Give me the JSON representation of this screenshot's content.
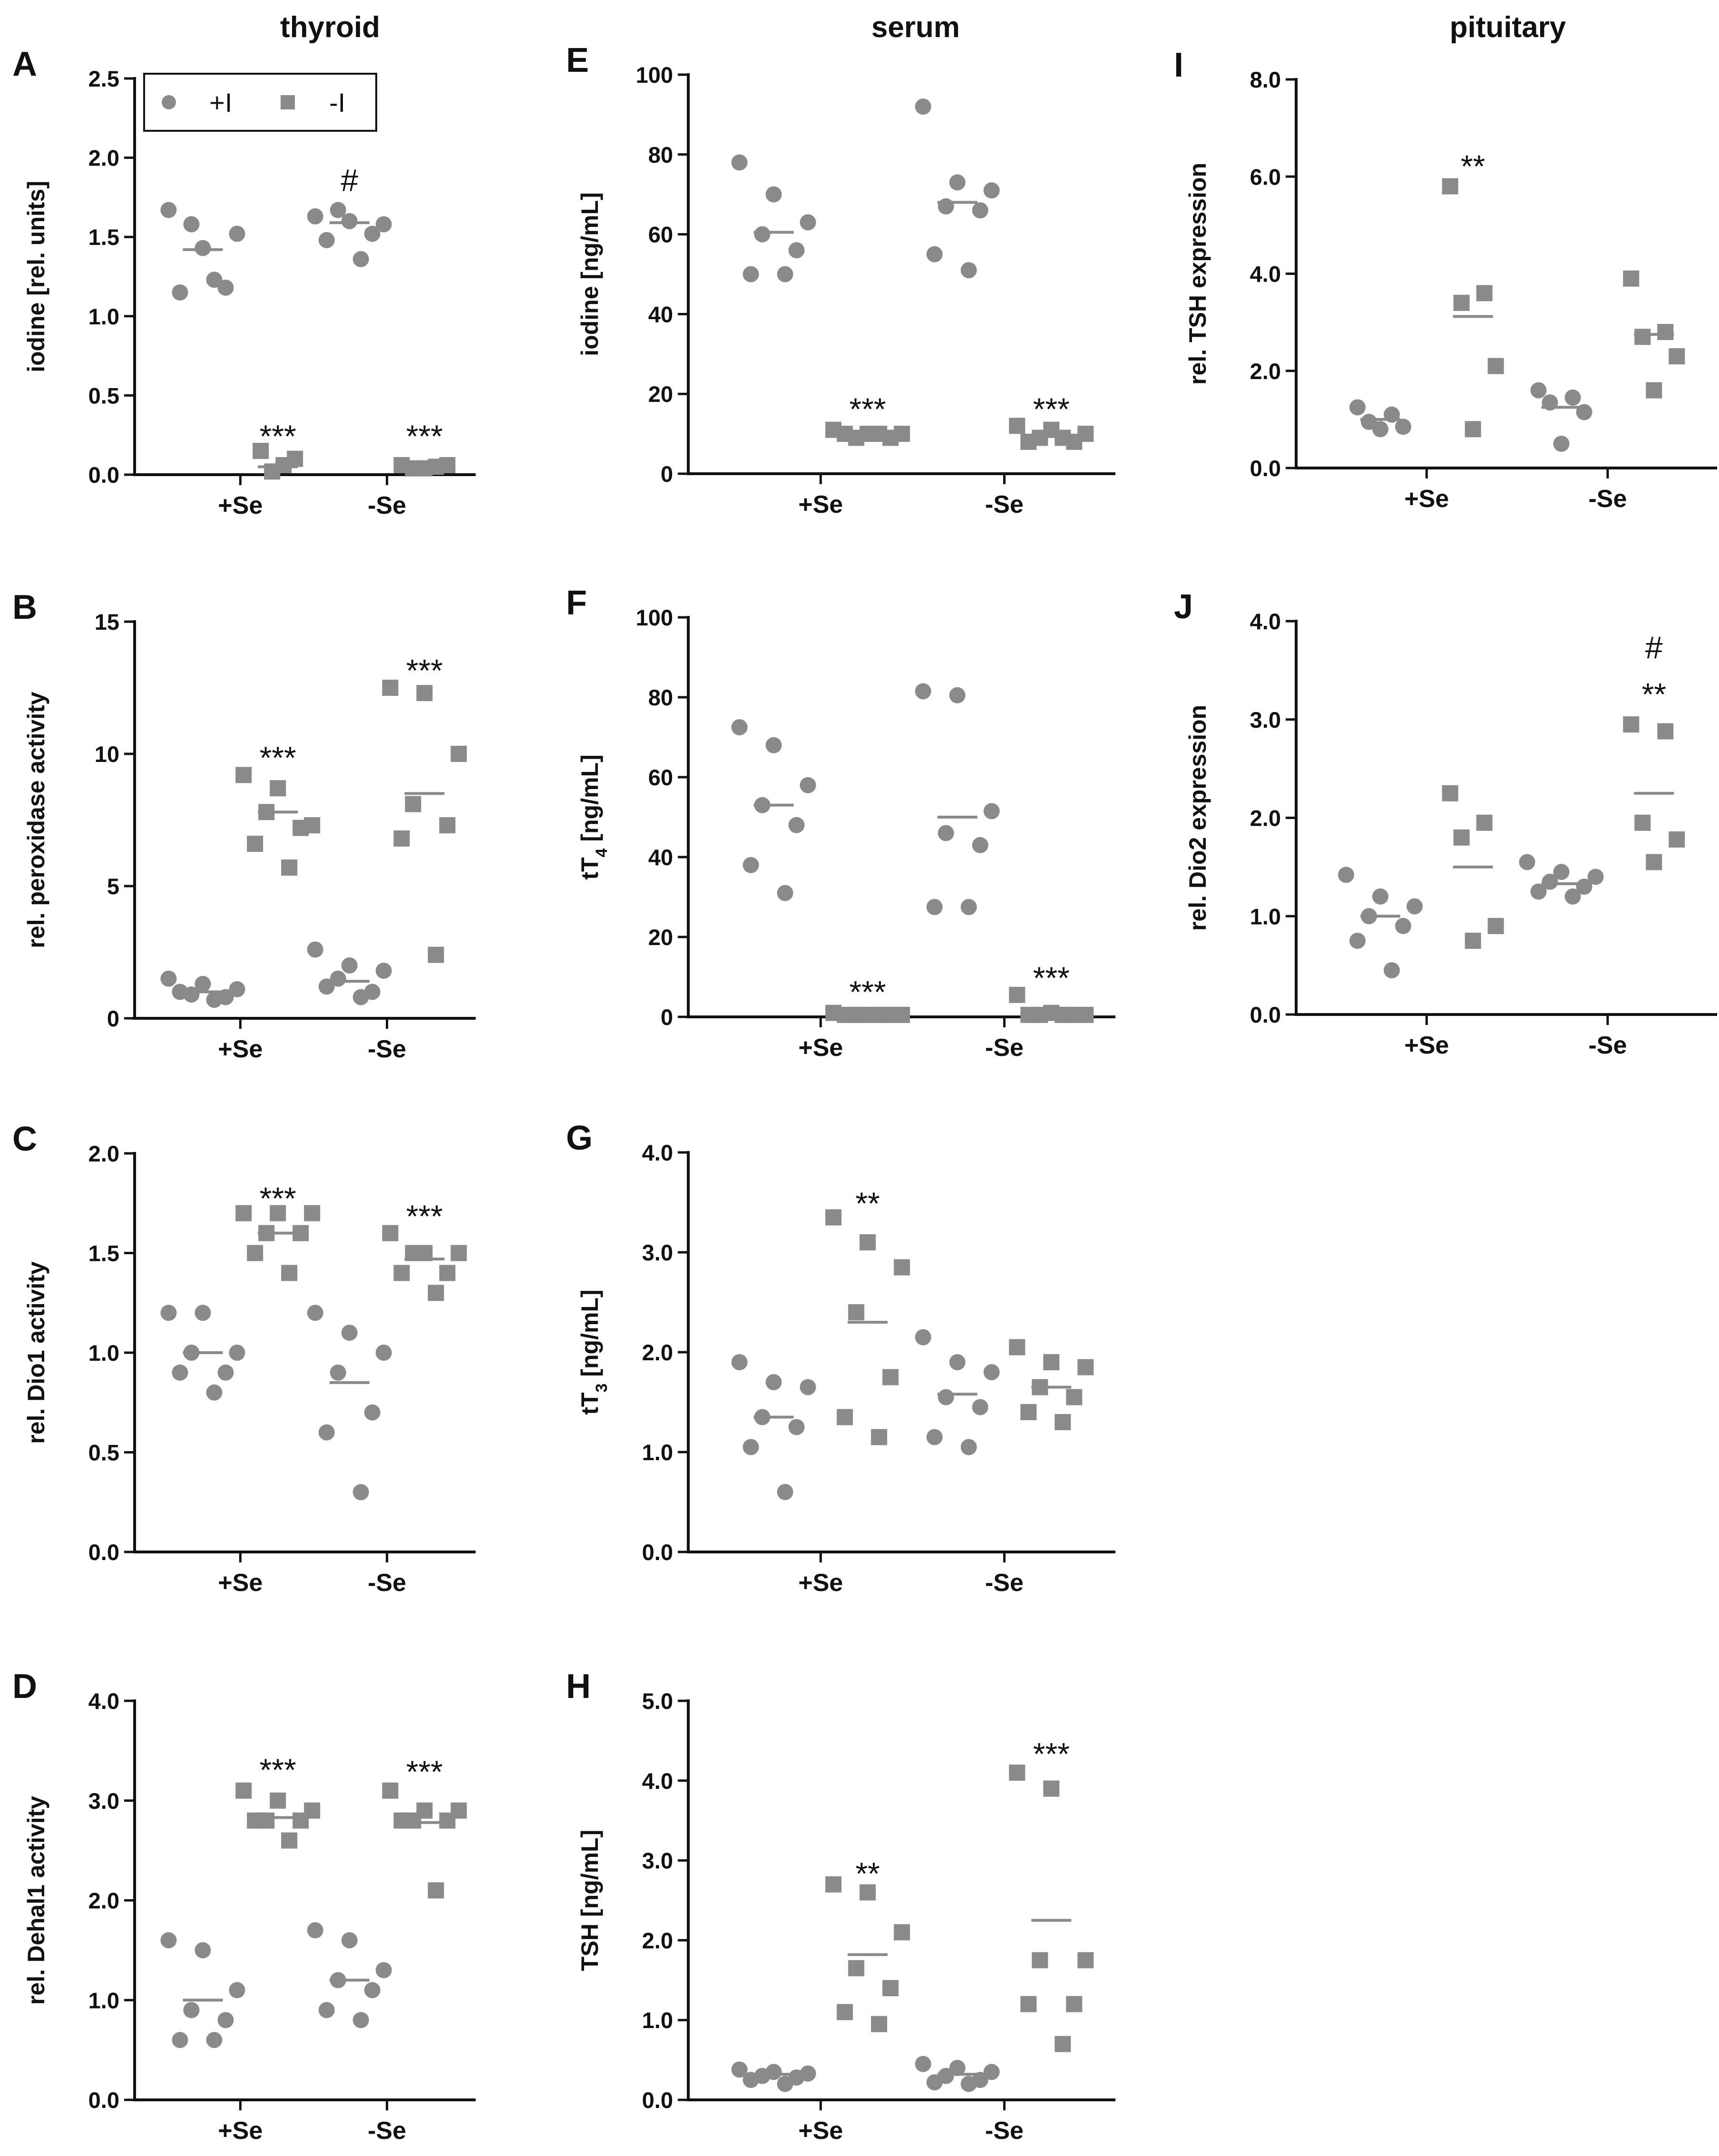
{
  "colors": {
    "marker": "#8a8a8a",
    "axis": "#111111",
    "background": "#ffffff"
  },
  "columns": [
    "thyroid",
    "serum",
    "pituitary"
  ],
  "legend": [
    {
      "label": "+I",
      "marker": "circle"
    },
    {
      "label": "-I",
      "marker": "square"
    }
  ],
  "chart_data": [
    {
      "id": "A",
      "type": "scatter",
      "column": "thyroid",
      "ylabel": "iodine [rel. units]",
      "ylim": [
        0,
        2.5
      ],
      "yticks": [
        "0.0",
        "0.5",
        "1.0",
        "1.5",
        "2.0",
        "2.5"
      ],
      "categories": [
        "+Se",
        "-Se"
      ],
      "series": [
        {
          "name": "+I",
          "marker": "circle",
          "values": [
            [
              1.67,
              1.43,
              1.52,
              1.58,
              1.18,
              1.15,
              1.23
            ],
            [
              1.63,
              1.6,
              1.58,
              1.67,
              1.52,
              1.48,
              1.36
            ]
          ],
          "means": [
            1.42,
            1.59
          ]
        },
        {
          "name": "-I",
          "marker": "square",
          "values": [
            [
              0.15,
              0.1,
              0.06,
              0.02
            ],
            [
              0.06,
              0.05,
              0.04,
              0.06,
              0.04
            ]
          ],
          "means": [
            0.05,
            0.05
          ]
        }
      ],
      "annotations": [
        {
          "cat": 0,
          "series": "-I",
          "y": 0.3,
          "text": "***"
        },
        {
          "cat": 1,
          "series": "+I",
          "y": 1.85,
          "text": "#"
        },
        {
          "cat": 1,
          "series": "-I",
          "y": 0.3,
          "text": "***"
        }
      ]
    },
    {
      "id": "B",
      "type": "scatter",
      "column": "thyroid",
      "ylabel": "rel. peroxidase activity",
      "ylim": [
        0,
        15
      ],
      "yticks": [
        "0",
        "5",
        "10",
        "15"
      ],
      "categories": [
        "+Se",
        "-Se"
      ],
      "series": [
        {
          "name": "+I",
          "marker": "circle",
          "values": [
            [
              1.5,
              1.3,
              1.1,
              0.9,
              0.8,
              1.0,
              0.7
            ],
            [
              2.6,
              2.0,
              1.8,
              1.5,
              1.0,
              1.2,
              0.8
            ]
          ],
          "means": [
            1.0,
            1.4
          ]
        },
        {
          "name": "-I",
          "marker": "square",
          "values": [
            [
              9.2,
              8.7,
              7.3,
              7.8,
              7.2,
              6.6,
              5.7
            ],
            [
              12.5,
              12.3,
              10.0,
              8.1,
              7.3,
              6.8,
              2.4
            ]
          ],
          "means": [
            7.8,
            8.5
          ]
        }
      ],
      "annotations": [
        {
          "cat": 0,
          "series": "-I",
          "y": 10.2,
          "text": "***"
        },
        {
          "cat": 1,
          "series": "-I",
          "y": 13.5,
          "text": "***"
        }
      ]
    },
    {
      "id": "C",
      "type": "scatter",
      "column": "thyroid",
      "ylabel": "rel. Dio1 activity",
      "ylim": [
        0,
        2.0
      ],
      "yticks": [
        "0.0",
        "0.5",
        "1.0",
        "1.5",
        "2.0"
      ],
      "categories": [
        "+Se",
        "-Se"
      ],
      "series": [
        {
          "name": "+I",
          "marker": "circle",
          "values": [
            [
              1.2,
              1.2,
              1.0,
              1.0,
              0.9,
              0.9,
              0.8
            ],
            [
              1.2,
              1.1,
              1.0,
              0.9,
              0.7,
              0.6,
              0.3
            ]
          ],
          "means": [
            1.0,
            0.85
          ]
        },
        {
          "name": "-I",
          "marker": "square",
          "values": [
            [
              1.7,
              1.7,
              1.7,
              1.6,
              1.6,
              1.5,
              1.4
            ],
            [
              1.6,
              1.5,
              1.5,
              1.5,
              1.4,
              1.4,
              1.3
            ]
          ],
          "means": [
            1.6,
            1.47
          ]
        }
      ],
      "annotations": [
        {
          "cat": 0,
          "series": "-I",
          "y": 1.82,
          "text": "***"
        },
        {
          "cat": 1,
          "series": "-I",
          "y": 1.73,
          "text": "***"
        }
      ]
    },
    {
      "id": "D",
      "type": "scatter",
      "column": "thyroid",
      "ylabel": "rel. Dehal1 activity",
      "ylim": [
        0,
        4.0
      ],
      "yticks": [
        "0.0",
        "1.0",
        "2.0",
        "3.0",
        "4.0"
      ],
      "categories": [
        "+Se",
        "-Se"
      ],
      "series": [
        {
          "name": "+I",
          "marker": "circle",
          "values": [
            [
              1.6,
              1.5,
              1.1,
              0.9,
              0.8,
              0.6,
              0.6
            ],
            [
              1.7,
              1.6,
              1.3,
              1.2,
              1.1,
              0.9,
              0.8
            ]
          ],
          "means": [
            1.0,
            1.2
          ]
        },
        {
          "name": "-I",
          "marker": "square",
          "values": [
            [
              3.1,
              3.0,
              2.9,
              2.8,
              2.8,
              2.8,
              2.6
            ],
            [
              3.1,
              2.9,
              2.9,
              2.8,
              2.8,
              2.8,
              2.1
            ]
          ],
          "means": [
            2.83,
            2.78
          ]
        }
      ],
      "annotations": [
        {
          "cat": 0,
          "series": "-I",
          "y": 3.4,
          "text": "***"
        },
        {
          "cat": 1,
          "series": "-I",
          "y": 3.38,
          "text": "***"
        }
      ]
    },
    {
      "id": "E",
      "type": "scatter",
      "column": "serum",
      "ylabel": "iodine [ng/mL]",
      "ylim": [
        0,
        100
      ],
      "yticks": [
        "0",
        "20",
        "40",
        "60",
        "80",
        "100"
      ],
      "categories": [
        "+Se",
        "-Se"
      ],
      "series": [
        {
          "name": "+I",
          "marker": "circle",
          "values": [
            [
              78,
              70,
              63,
              60,
              56,
              50,
              50
            ],
            [
              92,
              73,
              71,
              67,
              66,
              55,
              51
            ]
          ],
          "means": [
            60.5,
            68
          ]
        },
        {
          "name": "-I",
          "marker": "square",
          "values": [
            [
              11,
              10,
              10,
              9,
              9,
              10,
              10
            ],
            [
              12,
              11,
              10,
              9,
              8,
              8,
              9
            ]
          ],
          "means": [
            10,
            9.5
          ]
        }
      ],
      "annotations": [
        {
          "cat": 0,
          "series": "-I",
          "y": 18.5,
          "text": "***"
        },
        {
          "cat": 1,
          "series": "-I",
          "y": 18.5,
          "text": "***"
        }
      ]
    },
    {
      "id": "F",
      "type": "scatter",
      "column": "serum",
      "ylabel": "tT4 [ng/mL]",
      "ylim": [
        0,
        100
      ],
      "yticks": [
        "0",
        "20",
        "40",
        "60",
        "80",
        "100"
      ],
      "categories": [
        "+Se",
        "-Se"
      ],
      "series": [
        {
          "name": "+I",
          "marker": "circle",
          "values": [
            [
              72.5,
              68,
              58,
              53,
              48,
              38,
              31
            ],
            [
              81.5,
              80.5,
              51.5,
              46,
              43,
              27.5,
              27.5
            ]
          ],
          "means": [
            53,
            50
          ]
        },
        {
          "name": "-I",
          "marker": "square",
          "values": [
            [
              1,
              0.5,
              0.5,
              0.5,
              0.5,
              0.5,
              0.5
            ],
            [
              5.5,
              1,
              0.5,
              0.5,
              0.5,
              0.5,
              0.5
            ]
          ],
          "means": [
            0.5,
            0.5
          ]
        }
      ],
      "annotations": [
        {
          "cat": 0,
          "series": "-I",
          "y": 8.5,
          "text": "***"
        },
        {
          "cat": 1,
          "series": "-I",
          "y": 12,
          "text": "***"
        }
      ]
    },
    {
      "id": "G",
      "type": "scatter",
      "column": "serum",
      "ylabel": "tT3 [ng/mL]",
      "ylim": [
        0,
        4.0
      ],
      "yticks": [
        "0.0",
        "1.0",
        "2.0",
        "3.0",
        "4.0"
      ],
      "categories": [
        "+Se",
        "-Se"
      ],
      "series": [
        {
          "name": "+I",
          "marker": "circle",
          "values": [
            [
              1.9,
              1.7,
              1.65,
              1.35,
              1.25,
              1.05,
              0.6
            ],
            [
              2.15,
              1.9,
              1.8,
              1.55,
              1.45,
              1.15,
              1.05
            ]
          ],
          "means": [
            1.35,
            1.58
          ]
        },
        {
          "name": "-I",
          "marker": "square",
          "values": [
            [
              3.35,
              3.1,
              2.85,
              2.4,
              1.75,
              1.35,
              1.15
            ],
            [
              2.05,
              1.9,
              1.85,
              1.65,
              1.55,
              1.4,
              1.3
            ]
          ],
          "means": [
            2.3,
            1.65
          ]
        }
      ],
      "annotations": [
        {
          "cat": 0,
          "series": "-I",
          "y": 3.58,
          "text": "**"
        }
      ]
    },
    {
      "id": "H",
      "type": "scatter",
      "column": "serum",
      "ylabel": "TSH [ng/mL]",
      "ylim": [
        0,
        5.0
      ],
      "yticks": [
        "0.0",
        "1.0",
        "2.0",
        "3.0",
        "4.0",
        "5.0"
      ],
      "categories": [
        "+Se",
        "-Se"
      ],
      "series": [
        {
          "name": "+I",
          "marker": "circle",
          "values": [
            [
              0.38,
              0.35,
              0.33,
              0.3,
              0.28,
              0.25,
              0.2
            ],
            [
              0.45,
              0.4,
              0.35,
              0.3,
              0.25,
              0.22,
              0.2
            ]
          ],
          "means": [
            0.32,
            0.32
          ]
        },
        {
          "name": "-I",
          "marker": "square",
          "values": [
            [
              2.7,
              2.6,
              2.1,
              1.65,
              1.4,
              1.1,
              0.95
            ],
            [
              4.1,
              3.9,
              1.75,
              1.75,
              1.2,
              1.2,
              0.7
            ]
          ],
          "means": [
            1.82,
            2.25
          ]
        }
      ],
      "annotations": [
        {
          "cat": 0,
          "series": "-I",
          "y": 2.95,
          "text": "**"
        },
        {
          "cat": 1,
          "series": "-I",
          "y": 4.45,
          "text": "***"
        }
      ]
    },
    {
      "id": "I",
      "type": "scatter",
      "column": "pituitary",
      "ylabel": "rel. TSH expression",
      "ylim": [
        0,
        8.0
      ],
      "yticks": [
        "0.0",
        "2.0",
        "4.0",
        "6.0",
        "8.0"
      ],
      "categories": [
        "+Se",
        "-Se"
      ],
      "series": [
        {
          "name": "+I",
          "marker": "circle",
          "values": [
            [
              1.25,
              1.1,
              0.95,
              0.85,
              0.8
            ],
            [
              1.6,
              1.45,
              1.35,
              1.15,
              0.5
            ]
          ],
          "means": [
            1.0,
            1.25
          ]
        },
        {
          "name": "-I",
          "marker": "square",
          "values": [
            [
              5.8,
              3.6,
              3.4,
              2.1,
              0.8
            ],
            [
              3.9,
              2.8,
              2.7,
              2.3,
              1.6
            ]
          ],
          "means": [
            3.12,
            2.75
          ]
        }
      ],
      "annotations": [
        {
          "cat": 0,
          "series": "-I",
          "y": 6.4,
          "text": "**"
        }
      ]
    },
    {
      "id": "J",
      "type": "scatter",
      "column": "pituitary",
      "ylabel": "rel. Dio2 expression",
      "ylim": [
        0,
        4.0
      ],
      "yticks": [
        "0.0",
        "1.0",
        "2.0",
        "3.0",
        "4.0"
      ],
      "categories": [
        "+Se",
        "-Se"
      ],
      "series": [
        {
          "name": "+I",
          "marker": "circle",
          "values": [
            [
              1.42,
              1.2,
              1.1,
              1.0,
              0.9,
              0.75,
              0.45
            ],
            [
              1.55,
              1.45,
              1.4,
              1.35,
              1.3,
              1.25,
              1.2
            ]
          ],
          "means": [
            1.0,
            1.33
          ]
        },
        {
          "name": "-I",
          "marker": "square",
          "values": [
            [
              2.25,
              1.95,
              1.8,
              0.9,
              0.75
            ],
            [
              2.95,
              2.88,
              1.95,
              1.78,
              1.55
            ]
          ],
          "means": [
            1.5,
            2.25
          ]
        }
      ],
      "annotations": [
        {
          "cat": 1,
          "series": "-I",
          "y": 3.35,
          "text": "**"
        },
        {
          "cat": 1,
          "series": "-I",
          "y": 3.72,
          "text": "#"
        }
      ]
    }
  ]
}
